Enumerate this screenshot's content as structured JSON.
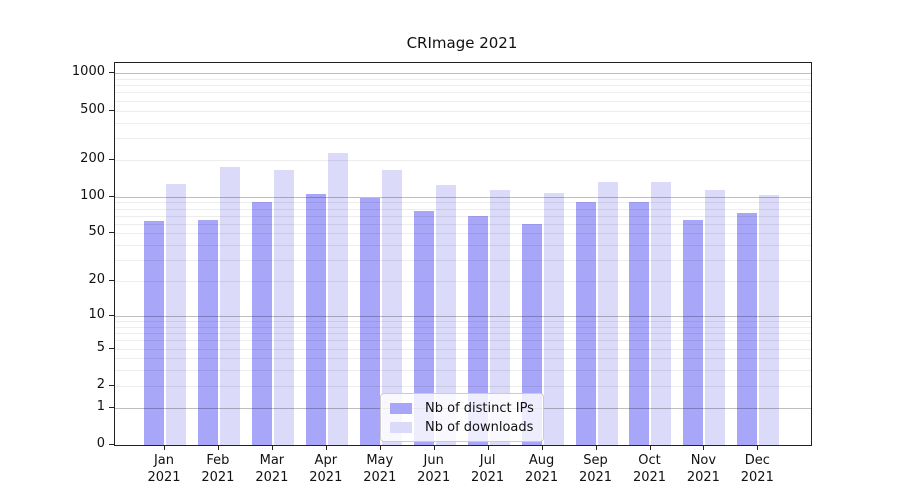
{
  "title": "CRImage 2021",
  "chart_data": {
    "type": "bar",
    "title": "CRImage 2021",
    "categories": [
      {
        "month": "Jan",
        "year": "2021"
      },
      {
        "month": "Feb",
        "year": "2021"
      },
      {
        "month": "Mar",
        "year": "2021"
      },
      {
        "month": "Apr",
        "year": "2021"
      },
      {
        "month": "May",
        "year": "2021"
      },
      {
        "month": "Jun",
        "year": "2021"
      },
      {
        "month": "Jul",
        "year": "2021"
      },
      {
        "month": "Aug",
        "year": "2021"
      },
      {
        "month": "Sep",
        "year": "2021"
      },
      {
        "month": "Oct",
        "year": "2021"
      },
      {
        "month": "Nov",
        "year": "2021"
      },
      {
        "month": "Dec",
        "year": "2021"
      }
    ],
    "series": [
      {
        "name": "Nb of distinct IPs",
        "color": "#a8a6f8",
        "values": [
          63,
          65,
          90,
          106,
          98,
          76,
          69,
          60,
          90,
          90,
          65,
          74
        ]
      },
      {
        "name": "Nb of downloads",
        "color": "#dbdaf8",
        "values": [
          127,
          175,
          165,
          228,
          165,
          125,
          113,
          108,
          132,
          132,
          114,
          104
        ]
      }
    ],
    "yscale": "log1p",
    "ylim": [
      0,
      1200
    ],
    "xlabel": "",
    "ylabel": "",
    "grid": true,
    "y_ticks": [
      {
        "value": 1000,
        "label": "1000"
      },
      {
        "value": 500,
        "label": "500"
      },
      {
        "value": 200,
        "label": "200"
      },
      {
        "value": 100,
        "label": "100"
      },
      {
        "value": 50,
        "label": "50"
      },
      {
        "value": 20,
        "label": "20"
      },
      {
        "value": 10,
        "label": "10"
      },
      {
        "value": 5,
        "label": "5"
      },
      {
        "value": 2,
        "label": "2"
      },
      {
        "value": 1,
        "label": "1"
      },
      {
        "value": 0,
        "label": "0"
      }
    ],
    "gridlines": {
      "major": [
        1,
        10,
        100,
        1000
      ],
      "minor": [
        2,
        3,
        4,
        5,
        6,
        7,
        8,
        9,
        20,
        30,
        40,
        50,
        60,
        70,
        80,
        90,
        200,
        300,
        400,
        500,
        600,
        700,
        800,
        900
      ]
    },
    "legend": {
      "position": "bottom-center",
      "entries": [
        "Nb of distinct IPs",
        "Nb of downloads"
      ]
    }
  }
}
